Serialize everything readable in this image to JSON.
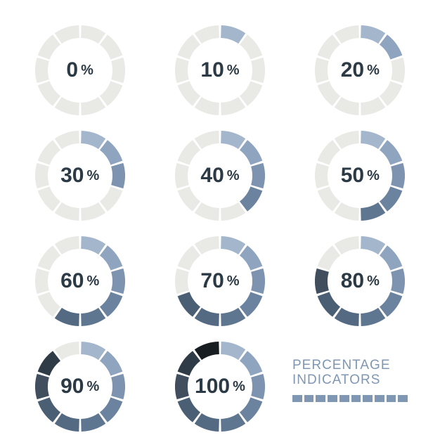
{
  "background_color": "#ffffff",
  "ring": {
    "outer_radius": 64,
    "inner_radius": 46,
    "segments": 10,
    "gap_deg": 3,
    "start_angle_deg": -90,
    "empty_color": "#e9e9e6",
    "fill_colors": [
      "#a4b6cc",
      "#8fa4bf",
      "#7d93b0",
      "#6c839f",
      "#5f7690",
      "#546a82",
      "#4a5f74",
      "#404e5e",
      "#2f3b46",
      "#181d22"
    ],
    "text_color": "#2b3a45",
    "value_fontsize": 30,
    "percent_fontsize": 20,
    "percent_suffix": "%"
  },
  "indicators": [
    {
      "value": 0,
      "filled_segments": 0
    },
    {
      "value": 10,
      "filled_segments": 1
    },
    {
      "value": 20,
      "filled_segments": 2
    },
    {
      "value": 30,
      "filled_segments": 3
    },
    {
      "value": 40,
      "filled_segments": 4
    },
    {
      "value": 50,
      "filled_segments": 5
    },
    {
      "value": 60,
      "filled_segments": 6
    },
    {
      "value": 70,
      "filled_segments": 7
    },
    {
      "value": 80,
      "filled_segments": 8
    },
    {
      "value": 90,
      "filled_segments": 9
    },
    {
      "value": 100,
      "filled_segments": 10
    }
  ],
  "title": {
    "line1": "PERCENTAGE",
    "line2": "INDICATORS",
    "color": "#7f97b2",
    "fontsize": 19,
    "swatch_color": "#7f97b2",
    "swatch_count": 10
  }
}
